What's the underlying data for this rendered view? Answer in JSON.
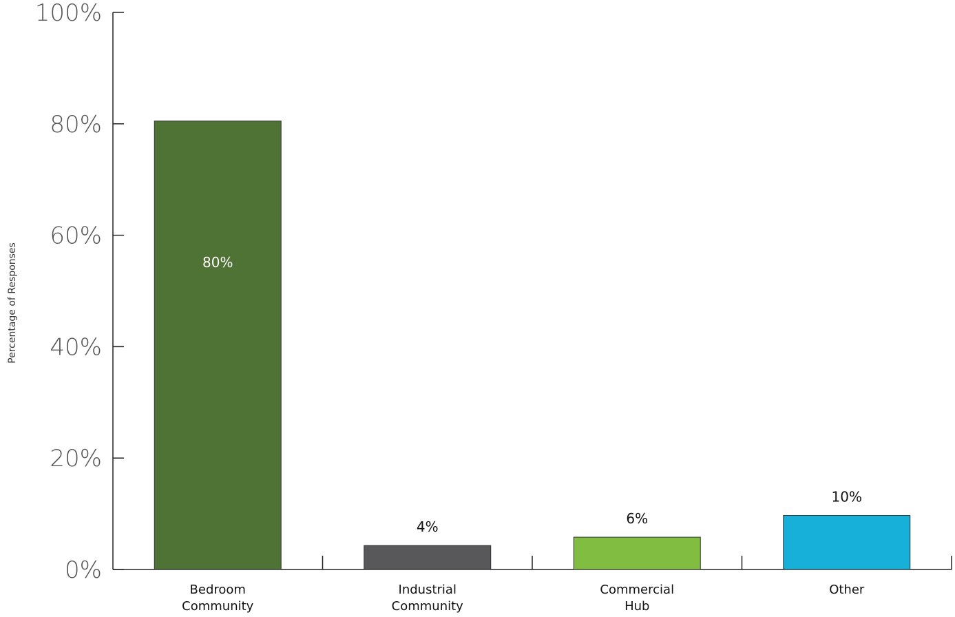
{
  "chart_data": {
    "type": "bar",
    "title": "",
    "xlabel": "",
    "ylabel": "Percentage of Responses",
    "ylim": [
      0,
      100
    ],
    "yticks": [
      "0%",
      "20%",
      "40%",
      "60%",
      "80%",
      "100%"
    ],
    "categories": [
      [
        "Bedroom",
        "Community"
      ],
      [
        "Industrial",
        "Community"
      ],
      [
        "Commercial",
        "Hub"
      ],
      [
        "Other"
      ]
    ],
    "values": [
      80.5,
      4.3,
      5.8,
      9.7
    ],
    "data_labels": [
      "80%",
      "4%",
      "6%",
      "10%"
    ],
    "colors": [
      "#4e7334",
      "#58585a",
      "#80bd41",
      "#16b0d8"
    ],
    "grid": false,
    "legend": "none"
  }
}
